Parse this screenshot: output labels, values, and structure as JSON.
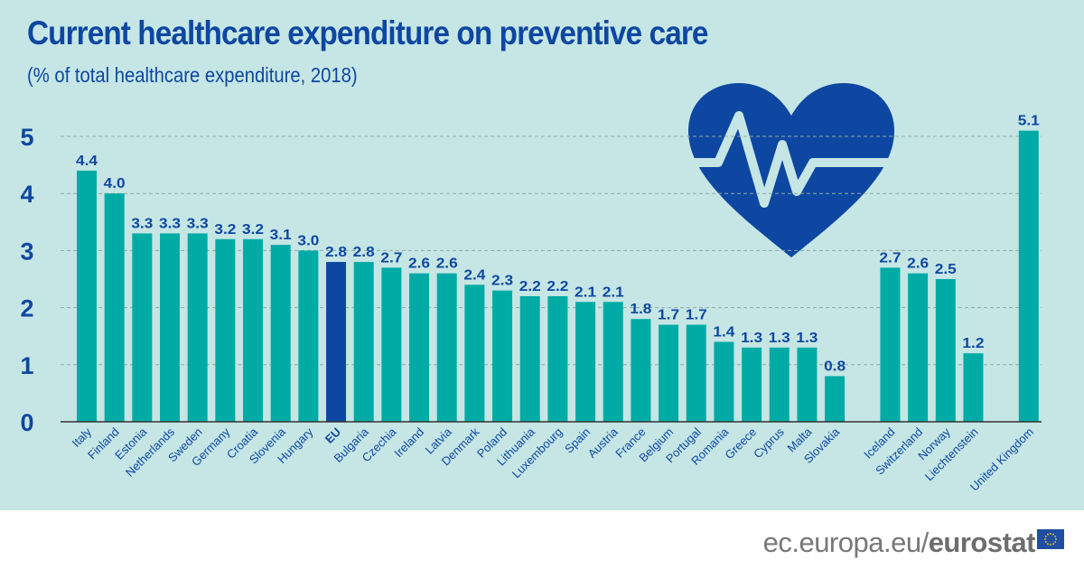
{
  "title": "Current healthcare expenditure on preventive care",
  "subtitle": "(% of total healthcare expenditure, 2018)",
  "footer": {
    "site": "ec.europa.eu/",
    "brand": "eurostat"
  },
  "colors": {
    "bar": "#00aba6",
    "eu_bar": "#0e47a1",
    "text": "#0e47a1",
    "background": "#c5e6e4"
  },
  "icon": "heart-pulse-icon",
  "chart_data": {
    "type": "bar",
    "title": "Current healthcare expenditure on preventive care",
    "subtitle": "(% of total healthcare expenditure, 2018)",
    "ylim": [
      0,
      5
    ],
    "yticks": [
      0,
      1,
      2,
      3,
      4,
      5
    ],
    "grid": true,
    "categories": [
      "Italy",
      "Finland",
      "Estonia",
      "Netherlands",
      "Sweden",
      "Germany",
      "Croatia",
      "Slovenia",
      "Hungary",
      "EU",
      "Bulgaria",
      "Czechia",
      "Ireland",
      "Latvia",
      "Denmark",
      "Poland",
      "Lithuania",
      "Luxembourg",
      "Spain",
      "Austria",
      "France",
      "Belgium",
      "Portugal",
      "Romania",
      "Greece",
      "Cyprus",
      "Malta",
      "Slovakia",
      "Iceland",
      "Switzerland",
      "Norway",
      "Liechtenstein",
      "United Kingdom"
    ],
    "values": [
      4.4,
      4.0,
      3.3,
      3.3,
      3.3,
      3.2,
      3.2,
      3.1,
      3.0,
      2.8,
      2.8,
      2.7,
      2.6,
      2.6,
      2.4,
      2.3,
      2.2,
      2.2,
      2.1,
      2.1,
      1.8,
      1.7,
      1.7,
      1.4,
      1.3,
      1.3,
      1.3,
      0.8,
      2.7,
      2.6,
      2.5,
      1.2,
      5.1
    ],
    "data_labels": [
      "4.4",
      "4.0",
      "3.3",
      "3.3",
      "3.3",
      "3.2",
      "3.2",
      "3.1",
      "3.0",
      "2.8",
      "2.8",
      "2.7",
      "2.6",
      "2.6",
      "2.4",
      "2.3",
      "2.2",
      "2.2",
      "2.1",
      "2.1",
      "1.8",
      "1.7",
      "1.7",
      "1.4",
      "1.3",
      "1.3",
      "1.3",
      "0.8",
      "2.7",
      "2.6",
      "2.5",
      "1.2",
      "5.1"
    ],
    "highlight": "EU"
  }
}
